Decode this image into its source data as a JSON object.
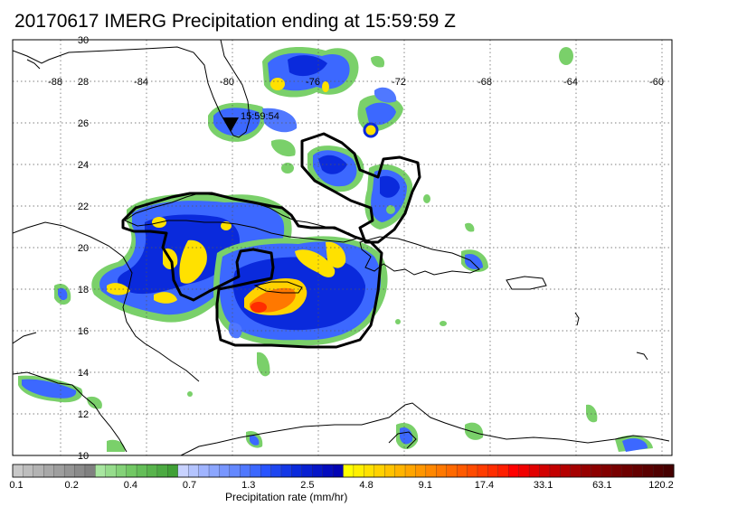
{
  "title": "20170617 IMERG Precipitation ending at 15:59:59 Z",
  "map": {
    "lon_labels": [
      "-88",
      "-84",
      "-80",
      "-76",
      "-72",
      "-68",
      "-64",
      "-60"
    ],
    "lat_labels": [
      "30",
      "28",
      "26",
      "24",
      "22",
      "20",
      "18",
      "16",
      "14",
      "12",
      "10"
    ],
    "marker_time": "15:59:54"
  },
  "colorbar": {
    "title": "Precipitation rate (mm/hr)",
    "tick_labels": [
      "0.1",
      "0.2",
      "0.4",
      "0.7",
      "1.3",
      "2.5",
      "4.8",
      "9.1",
      "17.4",
      "33.1",
      "63.1",
      "120.2"
    ],
    "colors": [
      "#c8c8c8",
      "#bdbdbd",
      "#b3b3b3",
      "#a8a8a8",
      "#9e9e9e",
      "#949494",
      "#8a8a8a",
      "#808080",
      "#a8e6a0",
      "#96dc8c",
      "#84d278",
      "#72c864",
      "#64be58",
      "#58b44c",
      "#4caa42",
      "#40a036",
      "#c8d2ff",
      "#b4c4ff",
      "#a0b4ff",
      "#8ca6ff",
      "#7896ff",
      "#6488ff",
      "#5078ff",
      "#3c68ff",
      "#2854ff",
      "#1e46f0",
      "#1438e6",
      "#0a2adc",
      "#0820d2",
      "#0616c8",
      "#040cbe",
      "#0204b4",
      "#ffff00",
      "#fff000",
      "#ffe100",
      "#ffd200",
      "#ffc300",
      "#ffb400",
      "#ffa500",
      "#ff9600",
      "#ff8700",
      "#ff7800",
      "#ff6900",
      "#ff5a00",
      "#ff4b00",
      "#ff3c00",
      "#ff2d00",
      "#ff1e00",
      "#ff0000",
      "#f00000",
      "#e10000",
      "#d20000",
      "#c30000",
      "#b40000",
      "#a50000",
      "#960000",
      "#8c0000",
      "#820000",
      "#780000",
      "#6e0000",
      "#640000",
      "#5a0000",
      "#500000",
      "#460000"
    ]
  }
}
